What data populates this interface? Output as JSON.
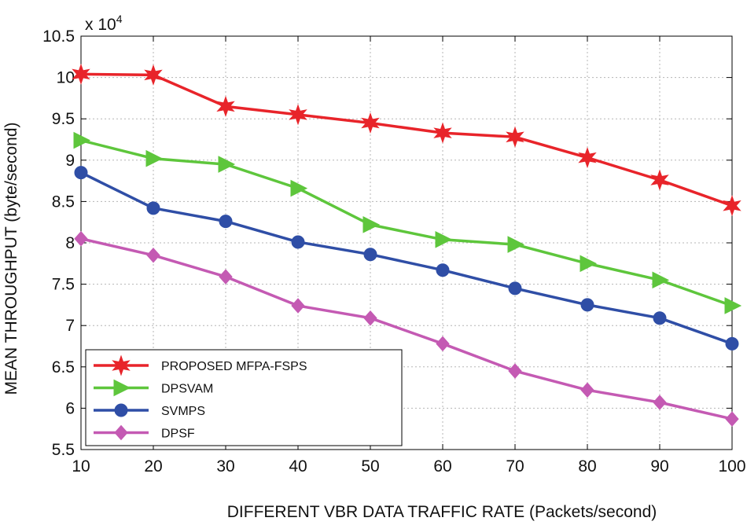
{
  "chart_data": {
    "type": "line",
    "title": "",
    "xlabel": "DIFFERENT VBR DATA TRAFFIC RATE (Packets/second)",
    "ylabel": "MEAN THROUGHPUT (byte/second)",
    "y_multiplier_text": "x 10",
    "y_multiplier_exponent": "4",
    "x": [
      10,
      20,
      30,
      40,
      50,
      60,
      70,
      80,
      90,
      100
    ],
    "xlim": [
      10,
      100
    ],
    "ylim": [
      5.5,
      10.5
    ],
    "xticks": [
      "10",
      "20",
      "30",
      "40",
      "50",
      "60",
      "70",
      "80",
      "90",
      "100"
    ],
    "yticks": [
      "5.5",
      "6",
      "6.5",
      "7",
      "7.5",
      "8",
      "8.5",
      "9",
      "9.5",
      "10",
      "10.5"
    ],
    "grid": true,
    "legend_position": "bottom-left",
    "series": [
      {
        "name": "PROPOSED MFPA-FSPS",
        "color": "#e8242a",
        "marker": "star",
        "values": [
          10.04,
          10.03,
          9.65,
          9.55,
          9.45,
          9.33,
          9.28,
          9.03,
          8.76,
          8.45
        ]
      },
      {
        "name": "DPSVAM",
        "color": "#5ec63c",
        "marker": "triangle-right",
        "values": [
          9.24,
          9.02,
          8.95,
          8.66,
          8.22,
          8.04,
          7.98,
          7.75,
          7.55,
          7.24
        ]
      },
      {
        "name": "SVMPS",
        "color": "#2f4ea6",
        "marker": "circle",
        "values": [
          8.85,
          8.42,
          8.26,
          8.01,
          7.86,
          7.67,
          7.45,
          7.25,
          7.09,
          6.78
        ]
      },
      {
        "name": "DPSF",
        "color": "#c45ab3",
        "marker": "diamond",
        "values": [
          8.05,
          7.85,
          7.59,
          7.24,
          7.09,
          6.78,
          6.45,
          6.22,
          6.07,
          5.87
        ]
      }
    ]
  }
}
